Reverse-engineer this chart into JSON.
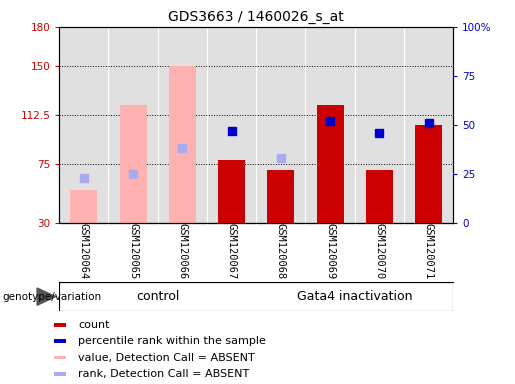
{
  "title": "GDS3663 / 1460026_s_at",
  "samples": [
    "GSM120064",
    "GSM120065",
    "GSM120066",
    "GSM120067",
    "GSM120068",
    "GSM120069",
    "GSM120070",
    "GSM120071"
  ],
  "red_bars": {
    "GSM120067": 78,
    "GSM120068": 70,
    "GSM120069": 120,
    "GSM120070": 70,
    "GSM120071": 105
  },
  "pink_bars": {
    "GSM120064": 55,
    "GSM120065": 120,
    "GSM120066": 150,
    "GSM120068": 70
  },
  "blue_squares": {
    "GSM120067": 47,
    "GSM120069": 52,
    "GSM120070": 46,
    "GSM120071": 51
  },
  "light_blue_squares": {
    "GSM120064": 23,
    "GSM120065": 25,
    "GSM120066": 38,
    "GSM120068": 33
  },
  "ylim_left": [
    30,
    180
  ],
  "ylim_right": [
    0,
    100
  ],
  "yticks_left": [
    30,
    75,
    112.5,
    150,
    180
  ],
  "yticks_right": [
    0,
    25,
    50,
    75,
    100
  ],
  "hlines": [
    75,
    112.5,
    150
  ],
  "bar_width": 0.55,
  "red_color": "#cc0000",
  "pink_color": "#ffb0b0",
  "blue_color": "#0000cc",
  "light_blue_color": "#aaaaee",
  "plot_bg": "#e0e0e0",
  "sample_bg": "#c8c8c8",
  "group_bg": "#7de87d",
  "title_fontsize": 10,
  "tick_fontsize": 7.5,
  "sample_fontsize": 7.5,
  "group_fontsize": 9,
  "legend_fontsize": 8,
  "legend_items": [
    {
      "color": "#cc0000",
      "label": "count"
    },
    {
      "color": "#0000cc",
      "label": "percentile rank within the sample"
    },
    {
      "color": "#ffb0b0",
      "label": "value, Detection Call = ABSENT"
    },
    {
      "color": "#aaaaee",
      "label": "rank, Detection Call = ABSENT"
    }
  ]
}
